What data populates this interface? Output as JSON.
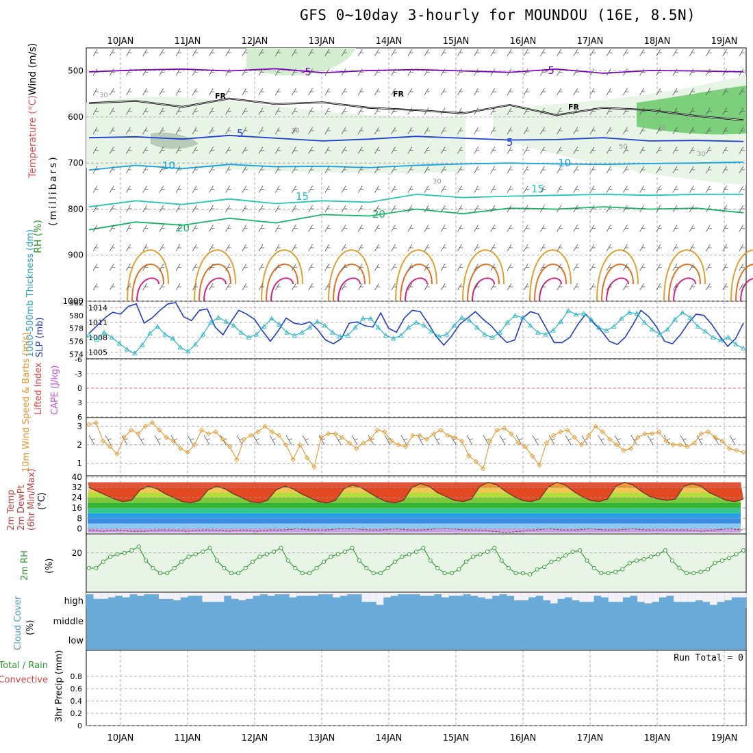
{
  "title": "GFS 0~10day 3-hourly for MOUNDOU (16E, 8.5N)",
  "dates": [
    "10JAN",
    "11JAN",
    "12JAN",
    "13JAN",
    "14JAN",
    "15JAN",
    "16JAN",
    "17JAN",
    "18JAN",
    "19JAN"
  ],
  "chart_data": [
    {
      "type": "heatmap",
      "name": "upper-air",
      "ylabel_wind": "Wind (m/s)",
      "ylabel_temp": "Temperature (°C)",
      "ylabel_rh": "RH (%)",
      "ylabel_p": "(millibars)",
      "yticks": [
        500,
        600,
        700,
        800,
        900,
        1000
      ],
      "ylim": [
        1000,
        450
      ],
      "contour_labels": {
        "temp": [
          "-5",
          "-5",
          "5",
          "5",
          "10",
          "10",
          "15",
          "15",
          "20",
          "20"
        ],
        "freeze": [
          "FR",
          "FR",
          "FR"
        ],
        "rh": [
          "30",
          "30",
          "30",
          "30",
          "50",
          "30"
        ]
      },
      "temp_lines": [
        {
          "level": -5,
          "color": "#8000c0",
          "p": [
            502,
            498,
            496,
            500,
            495,
            504,
            499,
            497,
            500,
            503,
            496,
            505,
            499,
            500,
            502
          ]
        },
        {
          "level": 0,
          "color": "#000000",
          "p": [
            570,
            565,
            578,
            560,
            572,
            568,
            580,
            585,
            592,
            574,
            596,
            580,
            585,
            598,
            607
          ]
        },
        {
          "level": 5,
          "color": "#1e3cdc",
          "p": [
            645,
            643,
            648,
            640,
            646,
            652,
            648,
            642,
            646,
            650,
            649,
            645,
            652,
            651,
            653
          ]
        },
        {
          "level": 10,
          "color": "#14a0e6",
          "p": [
            715,
            705,
            712,
            703,
            708,
            707,
            710,
            705,
            702,
            700,
            702,
            703,
            701,
            700,
            698
          ]
        },
        {
          "level": 15,
          "color": "#1ec8b4",
          "p": [
            795,
            782,
            790,
            778,
            788,
            782,
            785,
            768,
            775,
            772,
            770,
            768,
            770,
            768,
            768
          ]
        },
        {
          "level": 20,
          "color": "#14b464",
          "p": [
            845,
            828,
            835,
            820,
            830,
            812,
            815,
            800,
            810,
            798,
            800,
            795,
            800,
            798,
            808
          ]
        }
      ]
    },
    {
      "type": "line",
      "name": "thickness-slp",
      "ylabel_thick": "1000-500mb Thickness (dm)",
      "ylabel_slp": "SLP (mb)",
      "ylim_left": [
        573.5,
        582
      ],
      "ylim_right": [
        1004,
        1015
      ],
      "yticks_left": [
        574,
        576,
        578,
        580,
        582
      ],
      "yticks_right": [
        1005,
        1008,
        1011,
        1014
      ],
      "series": [
        {
          "name": "Thickness",
          "color": "#1e3cc8",
          "values": [
            577.2,
            578.4,
            579.6,
            580.5,
            580.2,
            581.4,
            581.8,
            578.8,
            579.6,
            580.8,
            581.8,
            582.0,
            579.8,
            579.2,
            580.8,
            581.0,
            578.2,
            577.0,
            579.0,
            580.8,
            580.2,
            579.4,
            577.6,
            576.0,
            577.6,
            579.6,
            578.8,
            578.6,
            579.0,
            577.8,
            576.2,
            575.6,
            576.4,
            578.8,
            579.0,
            578.4,
            578.2,
            580.4,
            578.0,
            577.4,
            579.6,
            580.8,
            580.6,
            578.8,
            576.8,
            575.4,
            576.8,
            578.6,
            579.6,
            580.6,
            579.4,
            578.4,
            577.0,
            575.8,
            576.2,
            579.6,
            580.6,
            580.2,
            578.0,
            575.8,
            575.8,
            576.6,
            578.6,
            580.2,
            578.8,
            577.6,
            576.0,
            575.5,
            576.6,
            578.6,
            580.8,
            579.8,
            578.2,
            576.0,
            575.6,
            577.0,
            578.8,
            580.2,
            580.0,
            578.6,
            576.8,
            575.2,
            576.4,
            578.8
          ]
        },
        {
          "name": "SLP",
          "color": "#28b4c8",
          "values": [
            1008.5,
            1007.5,
            1009.0,
            1008.0,
            1006.8,
            1005.6,
            1004.8,
            1006.5,
            1008.8,
            1010.2,
            1008.6,
            1007.8,
            1006.0,
            1005.2,
            1006.6,
            1008.6,
            1011.0,
            1012.0,
            1011.2,
            1010.4,
            1009.0,
            1008.0,
            1008.6,
            1010.2,
            1011.8,
            1010.6,
            1009.0,
            1008.4,
            1009.0,
            1010.0,
            1011.2,
            1010.4,
            1009.0,
            1008.2,
            1008.4,
            1010.0,
            1011.8,
            1011.8,
            1010.0,
            1008.4,
            1007.8,
            1008.4,
            1010.0,
            1011.0,
            1010.4,
            1009.2,
            1008.2,
            1008.6,
            1010.4,
            1012.0,
            1011.4,
            1010.0,
            1008.6,
            1008.0,
            1009.0,
            1011.0,
            1012.4,
            1012.0,
            1010.4,
            1009.0,
            1008.6,
            1009.4,
            1011.2,
            1013.4,
            1012.6,
            1012.8,
            1011.6,
            1010.0,
            1009.4,
            1010.2,
            1011.8,
            1013.0,
            1012.8,
            1011.0,
            1009.6,
            1008.6,
            1009.6,
            1011.6,
            1013.0,
            1012.0,
            1010.2,
            1009.2,
            1008.0,
            1007.4,
            1008.0,
            1006.6,
            1005.8
          ]
        }
      ]
    },
    {
      "type": "line",
      "name": "lifted-cape",
      "ylabel_li": "Lifted Index",
      "ylabel_cape": "CAPE (J/kg)",
      "yticks": [
        "6",
        "3",
        "0",
        "-3",
        "-6"
      ],
      "ylim": [
        -6,
        6
      ],
      "values": []
    },
    {
      "type": "line",
      "name": "wind10m",
      "ylabel": "10m Wind Speed & Barbs (m/s)",
      "yticks": [
        1,
        2,
        3
      ],
      "ylim": [
        0.4,
        3.4
      ],
      "series": [
        {
          "name": "Speed",
          "color": "#e8962a",
          "values": [
            3.1,
            3.2,
            2.2,
            1.9,
            1.5,
            2.4,
            2.8,
            2.6,
            3.0,
            3.2,
            2.8,
            2.4,
            2.2,
            1.8,
            1.6,
            2.0,
            2.8,
            2.6,
            2.7,
            2.3,
            1.9,
            1.2,
            2.3,
            2.5,
            2.7,
            3.0,
            2.7,
            2.5,
            2.0,
            1.2,
            2.0,
            1.3,
            0.8,
            2.4,
            2.6,
            2.6,
            2.4,
            2.1,
            1.8,
            2.1,
            2.3,
            2.8,
            2.7,
            2.2,
            2.0,
            1.9,
            2.5,
            2.5,
            2.3,
            2.6,
            2.8,
            2.5,
            2.4,
            2.2,
            1.4,
            1.1,
            0.7,
            2.2,
            2.8,
            2.9,
            2.6,
            2.1,
            1.9,
            1.4,
            0.9,
            2.1,
            2.5,
            2.7,
            2.8,
            2.4,
            2.0,
            2.5,
            3.0,
            2.7,
            2.3,
            2.0,
            1.7,
            1.8,
            2.4,
            2.6,
            2.6,
            2.7,
            2.2,
            2.0,
            2.0,
            1.9,
            2.1,
            2.6,
            2.7,
            2.4,
            2.2,
            1.8,
            1.7,
            1.6
          ]
        }
      ]
    },
    {
      "type": "area",
      "name": "temperature",
      "ylabel": "2m Temp 2m DewPt (6hr Min/Max) (°C)",
      "yticks": [
        0,
        8,
        16,
        24,
        32,
        40
      ],
      "ylim": [
        -3,
        40
      ],
      "series": [
        {
          "name": "2m Temp",
          "values": [
            32,
            29,
            26,
            23,
            21,
            22,
            30,
            33,
            31,
            27,
            24,
            21,
            20,
            22,
            30,
            33,
            31,
            27,
            24,
            21,
            20,
            22,
            30,
            33,
            31,
            27,
            24,
            21,
            20,
            22,
            31,
            34,
            32,
            28,
            24,
            21,
            20,
            22,
            32,
            35,
            33,
            28,
            25,
            22,
            21,
            23,
            33,
            36,
            34,
            29,
            25,
            22,
            21,
            23,
            32,
            36,
            34,
            29,
            25,
            22,
            21,
            23,
            33,
            36,
            34,
            29,
            25,
            23,
            22,
            23,
            33,
            35,
            33,
            28,
            25,
            22,
            21,
            23
          ]
        },
        {
          "name": "2m DewPt",
          "values": [
            -1,
            -2,
            -1,
            -2,
            -2,
            -1,
            -1,
            -2,
            -1,
            -1,
            -2,
            -1,
            -2,
            -1,
            -1,
            0,
            -1,
            -1,
            0,
            0,
            -1,
            -1,
            0,
            -1,
            -1,
            0,
            0,
            -1,
            -1,
            -2,
            -3,
            -2,
            -1,
            0,
            -1,
            -1,
            0,
            -1,
            -1,
            0,
            -1,
            -1,
            -1,
            -1,
            -2,
            -1,
            0,
            -1
          ]
        }
      ]
    },
    {
      "type": "area",
      "name": "rh2m",
      "ylabel": "2m RH (%)",
      "yticks": [
        20
      ],
      "ylim": [
        -10,
        34
      ],
      "series": [
        {
          "name": "2m RH",
          "values": [
            8,
            8,
            13,
            17,
            19,
            20,
            22,
            25,
            14,
            8,
            4,
            4,
            8,
            13,
            17,
            19,
            21,
            24,
            14,
            8,
            4,
            4,
            8,
            13,
            17,
            19,
            21,
            24,
            14,
            8,
            4,
            4,
            8,
            13,
            17,
            19,
            21,
            24,
            14,
            8,
            4,
            4,
            8,
            13,
            17,
            19,
            21,
            24,
            14,
            8,
            4,
            4,
            7,
            13,
            17,
            19,
            21,
            24,
            14,
            8,
            4,
            4,
            3,
            7,
            9,
            13,
            15,
            18,
            21,
            22,
            14,
            8,
            4,
            4,
            5,
            7,
            12,
            14,
            15,
            17,
            19,
            22,
            14,
            8,
            4,
            4,
            5,
            7,
            12,
            14,
            16,
            19,
            22
          ]
        }
      ]
    },
    {
      "type": "heatmap",
      "name": "cloud-cover",
      "ylabel": "Cloud Cover (%)",
      "levels": [
        "high",
        "middle",
        "low"
      ],
      "high_gap": [
        0.1,
        0.4,
        0.4,
        0.3,
        0.2,
        0.3,
        0.1,
        0.2,
        0.1,
        0.1,
        0.4,
        0.4,
        0.5,
        0.3,
        0.2,
        0.2,
        0.6,
        0.6,
        0.6,
        0.2,
        0.4,
        0.5,
        0.4,
        0.2,
        0.1,
        0.2,
        0.1,
        0.1,
        0.3,
        0.2,
        0.2,
        0.2,
        0.1,
        0.1,
        0.3,
        0.2,
        0.1,
        0.1,
        0.6,
        0.6,
        0.8,
        0.3,
        0.2,
        0.1,
        0.1,
        0.1,
        0.2,
        0.2,
        0.1,
        0.3,
        0.2,
        0.2,
        0.1,
        0.2,
        0.3,
        0.4,
        0.2,
        0.1,
        0.2,
        0.5,
        0.5,
        0.3,
        0.2,
        0.5,
        0.7,
        0.4,
        0.3,
        0.5,
        0.6,
        0.6,
        0.2,
        0.3,
        0.6,
        0.6,
        0.3,
        0.2,
        0.6,
        0.7,
        0.6,
        0.3,
        0.2,
        0.6,
        0.6,
        0.6,
        0.5,
        0.6,
        0.8,
        0.6,
        0.5,
        0.3,
        0.3
      ]
    },
    {
      "type": "bar",
      "name": "precip",
      "ylabel_a": "Total / Rain",
      "ylabel_b": "Convective",
      "ylabel_c": "3hr Precip (mm)",
      "yticks": [
        "0",
        "0.2",
        "0.4",
        "0.6",
        "0.8"
      ],
      "ylim": [
        0,
        1.0
      ],
      "run_total": "Run Total = 0",
      "values": []
    }
  ]
}
